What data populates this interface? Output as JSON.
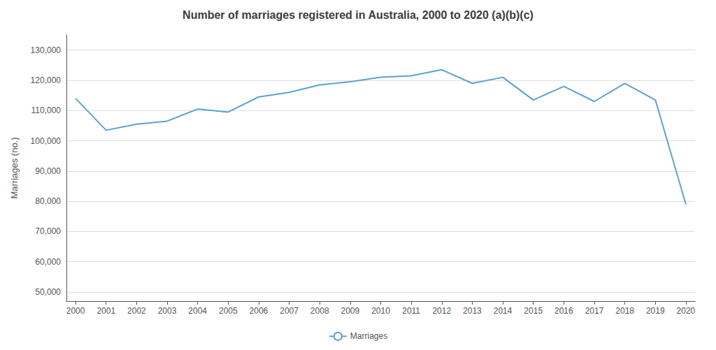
{
  "chart_data": {
    "type": "line",
    "title": "Number of marriages registered in Australia, 2000 to 2020 (a)(b)(c)",
    "ylabel": "Marriages (no.)",
    "x": [
      2000,
      2001,
      2002,
      2003,
      2004,
      2005,
      2006,
      2007,
      2008,
      2009,
      2010,
      2011,
      2012,
      2013,
      2014,
      2015,
      2016,
      2017,
      2018,
      2019,
      2020
    ],
    "series": [
      {
        "name": "Marriages",
        "color": "#5ba3cb",
        "values": [
          114000,
          103500,
          105500,
          106500,
          110500,
          109500,
          114500,
          116000,
          118500,
          119500,
          121000,
          121500,
          123500,
          119000,
          121000,
          113500,
          118000,
          113000,
          119000,
          113500,
          79000
        ]
      }
    ],
    "xlim": [
      1999.7,
      2020.3
    ],
    "xticks": [
      2000,
      2001,
      2002,
      2003,
      2004,
      2005,
      2006,
      2007,
      2008,
      2009,
      2010,
      2011,
      2012,
      2013,
      2014,
      2015,
      2016,
      2017,
      2018,
      2019,
      2020
    ],
    "ylim": [
      47000,
      135000
    ],
    "yticks": [
      {
        "value": 50000,
        "label": "50,000"
      },
      {
        "value": 60000,
        "label": "60,000"
      },
      {
        "value": 70000,
        "label": "70,000"
      },
      {
        "value": 80000,
        "label": "80,000"
      },
      {
        "value": 90000,
        "label": "90,000"
      },
      {
        "value": 100000,
        "label": "100,000"
      },
      {
        "value": 110000,
        "label": "110,000"
      },
      {
        "value": 120000,
        "label": "120,000"
      },
      {
        "value": 130000,
        "label": "130,000"
      }
    ],
    "grid": true,
    "legend": "bottom"
  }
}
